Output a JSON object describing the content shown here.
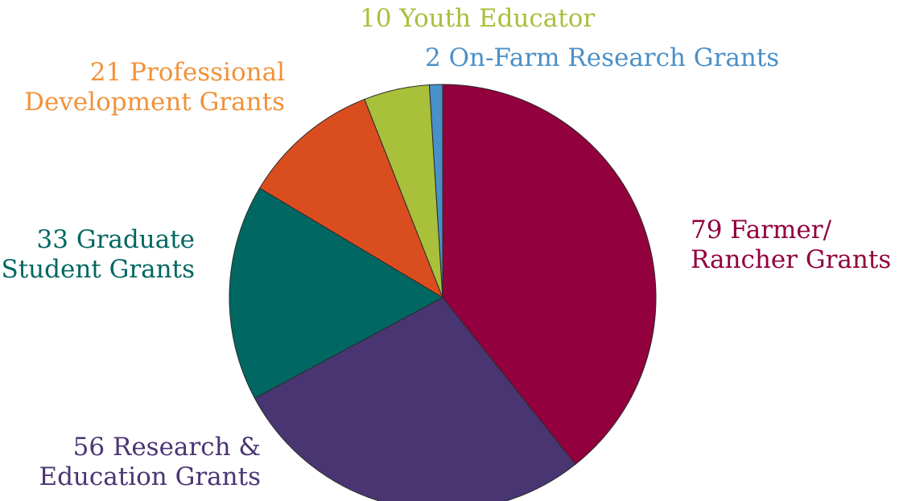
{
  "chart_data": {
    "type": "pie",
    "start_angle_deg": 0,
    "direction": "clockwise",
    "slices": [
      {
        "label_lines": [
          "79 Farmer/",
          "Rancher Grants"
        ],
        "value": 79,
        "color": "#92003d",
        "label_color": "#92003d"
      },
      {
        "label_lines": [
          "56 Research &",
          "Education Grants"
        ],
        "value": 56,
        "color": "#4a3573",
        "label_color": "#4a3573"
      },
      {
        "label_lines": [
          "33 Graduate",
          "Student Grants"
        ],
        "value": 33,
        "color": "#006762",
        "label_color": "#006762"
      },
      {
        "label_lines": [
          "21 Professional",
          "Development Grants"
        ],
        "value": 21,
        "color": "#d94d1e",
        "label_color": "#f0923a"
      },
      {
        "label_lines": [
          "10 Youth Educator"
        ],
        "value": 10,
        "color": "#a8c03a",
        "label_color": "#a8c03a"
      },
      {
        "label_lines": [
          "2 On-Farm Research Grants"
        ],
        "value": 2,
        "color": "#4a90c9",
        "label_color": "#4a90c9"
      }
    ]
  }
}
